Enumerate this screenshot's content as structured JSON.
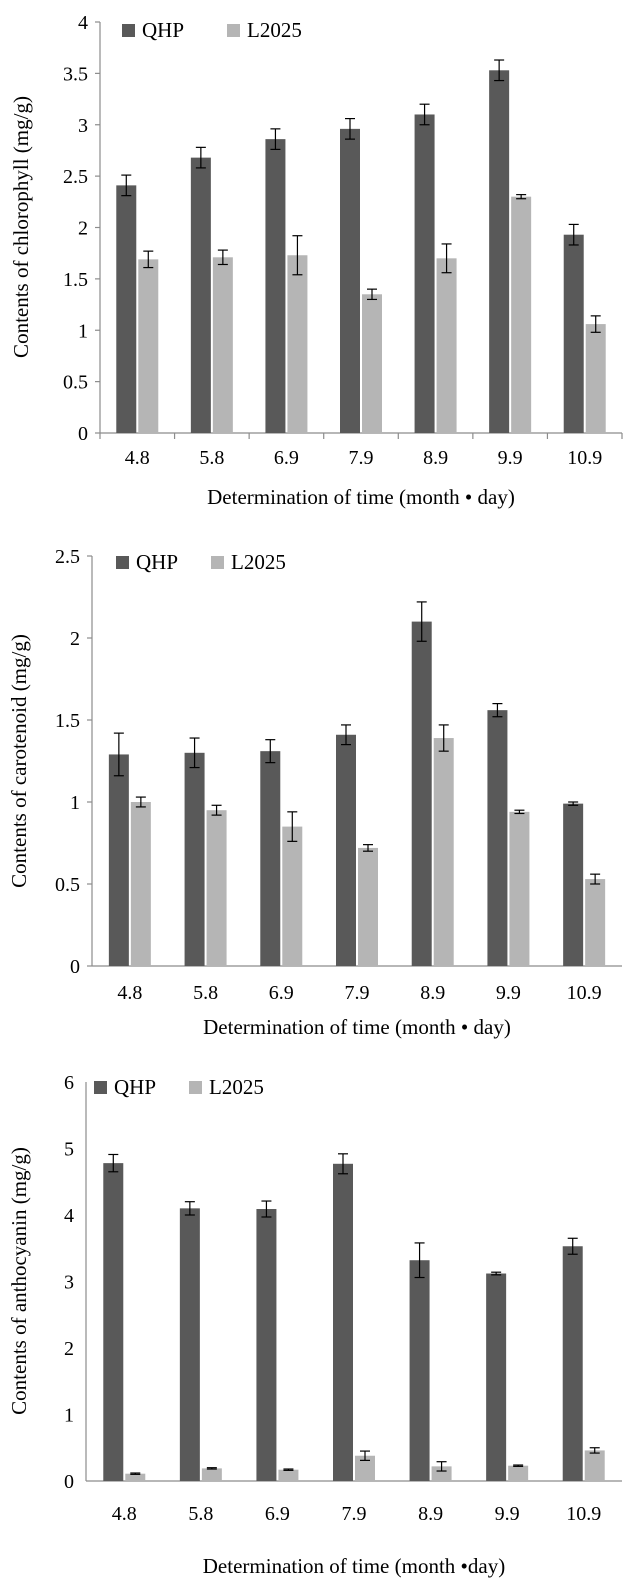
{
  "colors": {
    "QHP": "#595959",
    "L2025": "#b5b5b5",
    "axis": "#8c8c8c",
    "error": "#000000"
  },
  "chart_data": [
    {
      "type": "bar",
      "title": "",
      "xlabel": "Determination of time (month • day)",
      "ylabel": "Contents of chlorophyll (mg/g)",
      "ylim": [
        0,
        4
      ],
      "yticks": [
        "0",
        "0.5",
        "1",
        "1.5",
        "2",
        "2.5",
        "3",
        "3.5",
        "4"
      ],
      "grid": false,
      "legend_position": "top-left",
      "categories": [
        "4.8",
        "5.8",
        "6.9",
        "7.9",
        "8.9",
        "9.9",
        "10.9"
      ],
      "series": [
        {
          "name": "QHP",
          "values": [
            2.41,
            2.68,
            2.86,
            2.96,
            3.1,
            3.53,
            1.93
          ],
          "errors": [
            0.1,
            0.1,
            0.1,
            0.1,
            0.1,
            0.1,
            0.1
          ]
        },
        {
          "name": "L2025",
          "values": [
            1.69,
            1.71,
            1.73,
            1.35,
            1.7,
            2.3,
            1.06
          ],
          "errors": [
            0.08,
            0.07,
            0.19,
            0.05,
            0.14,
            0.02,
            0.08
          ]
        }
      ]
    },
    {
      "type": "bar",
      "title": "",
      "xlabel": "Determination of time (month • day)",
      "ylabel": "Contents of carotenoid (mg/g)",
      "ylim": [
        0,
        2.5
      ],
      "yticks": [
        "0",
        "0.5",
        "1",
        "1.5",
        "2",
        "2.5"
      ],
      "grid": false,
      "legend_position": "top-left",
      "categories": [
        "4.8",
        "5.8",
        "6.9",
        "7.9",
        "8.9",
        "9.9",
        "10.9"
      ],
      "series": [
        {
          "name": "QHP",
          "values": [
            1.29,
            1.3,
            1.31,
            1.41,
            2.1,
            1.56,
            0.99
          ],
          "errors": [
            0.13,
            0.09,
            0.07,
            0.06,
            0.12,
            0.04,
            0.01
          ]
        },
        {
          "name": "L2025",
          "values": [
            1.0,
            0.95,
            0.85,
            0.72,
            1.39,
            0.94,
            0.53
          ],
          "errors": [
            0.03,
            0.03,
            0.09,
            0.02,
            0.08,
            0.01,
            0.03
          ]
        }
      ]
    },
    {
      "type": "bar",
      "title": "",
      "xlabel": "Determination of time (month •day)",
      "ylabel": "Contents of  anthocyanin (mg/g)",
      "ylim": [
        0,
        6
      ],
      "yticks": [
        "0",
        "1",
        "2",
        "3",
        "4",
        "5",
        "6"
      ],
      "grid": false,
      "legend_position": "top-left",
      "categories": [
        "4.8",
        "5.8",
        "6.9",
        "7.9",
        "8.9",
        "9.9",
        "10.9"
      ],
      "series": [
        {
          "name": "QHP",
          "values": [
            4.78,
            4.1,
            4.09,
            4.77,
            3.32,
            3.12,
            3.53
          ],
          "errors": [
            0.13,
            0.1,
            0.12,
            0.15,
            0.26,
            0.02,
            0.12
          ]
        },
        {
          "name": "L2025",
          "values": [
            0.11,
            0.19,
            0.17,
            0.38,
            0.22,
            0.23,
            0.46
          ],
          "errors": [
            0.01,
            0.01,
            0.01,
            0.07,
            0.07,
            0.01,
            0.04
          ]
        }
      ]
    }
  ]
}
